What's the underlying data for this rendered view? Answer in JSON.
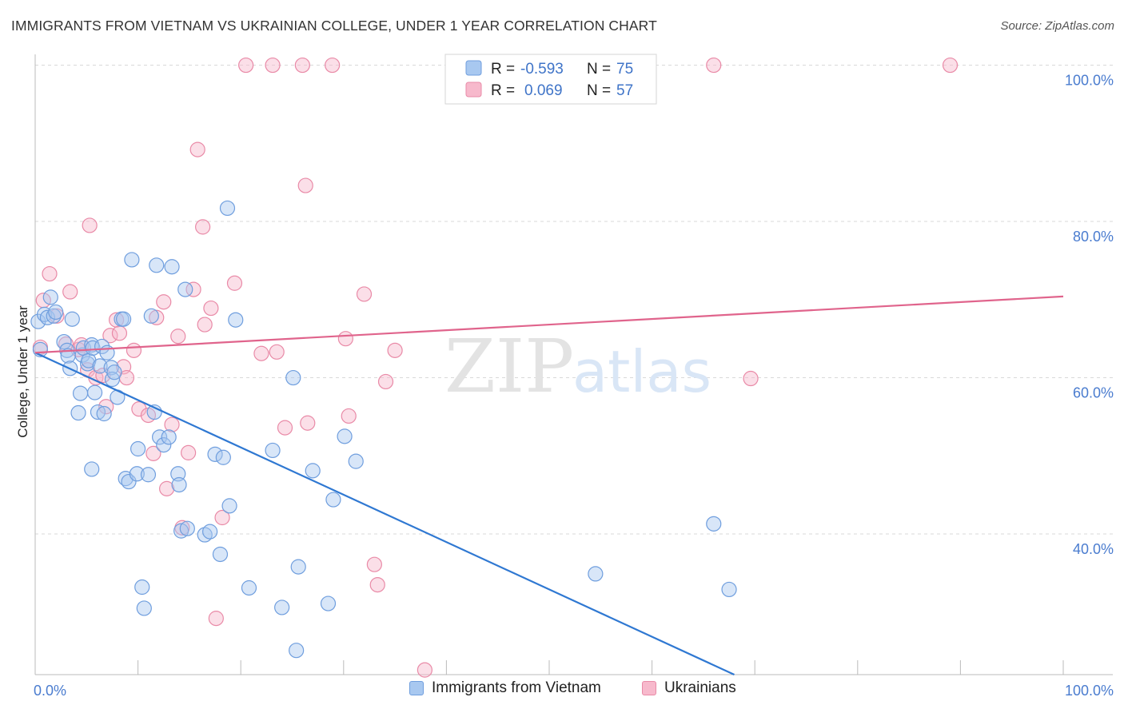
{
  "header": {
    "title": "IMMIGRANTS FROM VIETNAM VS UKRAINIAN COLLEGE, UNDER 1 YEAR CORRELATION CHART",
    "source": "Source: ZipAtlas.com"
  },
  "watermark": {
    "zip": "ZIP",
    "atlas": "atlas"
  },
  "colors": {
    "blue_fill": "#a8c8f0",
    "blue_stroke": "#6f9ede",
    "blue_line": "#2f78d2",
    "pink_fill": "#f7b9cc",
    "pink_stroke": "#e98aa7",
    "pink_line": "#e0648c",
    "value_text": "#3f74c8",
    "grid": "#d9d9d9"
  },
  "legend_top": {
    "rows": [
      {
        "r_label": "R =",
        "r_value": "-0.593",
        "n_label": "N =",
        "n_value": "75"
      },
      {
        "r_label": "R =",
        "r_value": "0.069",
        "n_label": "N =",
        "n_value": "57"
      }
    ]
  },
  "chart_data": {
    "type": "scatter",
    "title": "IMMIGRANTS FROM VIETNAM VS UKRAINIAN COLLEGE, UNDER 1 YEAR CORRELATION CHART",
    "xlabel": "",
    "ylabel": "College, Under 1 year",
    "xlim": [
      0,
      100
    ],
    "ylim": [
      22,
      102
    ],
    "x_tick_labels": [
      "0.0%",
      "100.0%"
    ],
    "y_ticks": [
      40,
      60,
      80,
      100
    ],
    "y_tick_labels": [
      "40.0%",
      "60.0%",
      "80.0%",
      "100.0%"
    ],
    "grid": true,
    "legend": "bottom-center",
    "series": [
      {
        "name": "Immigrants from Vietnam",
        "color": "#a8c8f0",
        "trend": {
          "x": [
            0,
            68
          ],
          "y": [
            63.2,
            22
          ]
        },
        "points": [
          [
            0.3,
            67.2
          ],
          [
            0.5,
            63.6
          ],
          [
            0.9,
            68.1
          ],
          [
            1.2,
            67.7
          ],
          [
            1.5,
            70.3
          ],
          [
            1.8,
            67.9
          ],
          [
            2.0,
            68.4
          ],
          [
            2.8,
            64.6
          ],
          [
            3.1,
            63.5
          ],
          [
            3.2,
            62.8
          ],
          [
            3.4,
            61.2
          ],
          [
            3.6,
            67.5
          ],
          [
            4.2,
            55.5
          ],
          [
            4.4,
            58.0
          ],
          [
            4.6,
            62.9
          ],
          [
            4.7,
            63.8
          ],
          [
            5.1,
            61.8
          ],
          [
            5.2,
            62.2
          ],
          [
            5.5,
            64.2
          ],
          [
            5.6,
            63.8
          ],
          [
            5.5,
            48.3
          ],
          [
            5.8,
            58.1
          ],
          [
            6.1,
            55.6
          ],
          [
            6.3,
            61.5
          ],
          [
            6.5,
            64.0
          ],
          [
            6.7,
            55.4
          ],
          [
            7.0,
            63.2
          ],
          [
            7.4,
            61.3
          ],
          [
            7.5,
            59.8
          ],
          [
            7.7,
            60.7
          ],
          [
            8.0,
            57.5
          ],
          [
            8.4,
            67.5
          ],
          [
            8.6,
            67.5
          ],
          [
            8.8,
            47.1
          ],
          [
            9.1,
            46.7
          ],
          [
            9.4,
            75.1
          ],
          [
            9.9,
            47.7
          ],
          [
            10.0,
            50.9
          ],
          [
            10.4,
            33.2
          ],
          [
            10.6,
            30.5
          ],
          [
            11.0,
            47.6
          ],
          [
            11.3,
            67.9
          ],
          [
            11.6,
            55.6
          ],
          [
            11.8,
            74.4
          ],
          [
            12.1,
            52.4
          ],
          [
            12.5,
            51.4
          ],
          [
            13.0,
            52.4
          ],
          [
            13.3,
            74.2
          ],
          [
            13.9,
            47.7
          ],
          [
            14.0,
            46.3
          ],
          [
            14.2,
            40.4
          ],
          [
            14.6,
            71.3
          ],
          [
            14.8,
            40.7
          ],
          [
            16.5,
            39.9
          ],
          [
            17.0,
            40.3
          ],
          [
            17.5,
            50.2
          ],
          [
            18.0,
            37.4
          ],
          [
            18.3,
            49.8
          ],
          [
            18.7,
            81.7
          ],
          [
            18.9,
            43.6
          ],
          [
            19.5,
            67.4
          ],
          [
            20.8,
            33.1
          ],
          [
            23.1,
            50.7
          ],
          [
            24.0,
            30.6
          ],
          [
            25.1,
            60.0
          ],
          [
            25.4,
            25.1
          ],
          [
            25.6,
            35.8
          ],
          [
            27.0,
            48.1
          ],
          [
            28.5,
            31.1
          ],
          [
            29.0,
            44.4
          ],
          [
            30.1,
            52.5
          ],
          [
            31.2,
            49.3
          ],
          [
            54.5,
            34.9
          ],
          [
            66.0,
            41.3
          ],
          [
            67.5,
            32.9
          ]
        ]
      },
      {
        "name": "Ukrainians",
        "color": "#f7b9cc",
        "trend": {
          "x": [
            0,
            100
          ],
          "y": [
            63.2,
            70.4
          ]
        },
        "points": [
          [
            0.5,
            63.9
          ],
          [
            0.8,
            69.9
          ],
          [
            1.4,
            73.3
          ],
          [
            2.1,
            67.9
          ],
          [
            3.0,
            64.3
          ],
          [
            3.4,
            71.0
          ],
          [
            4.2,
            63.6
          ],
          [
            4.5,
            64.2
          ],
          [
            5.1,
            61.0
          ],
          [
            5.3,
            79.5
          ],
          [
            5.9,
            60.0
          ],
          [
            6.6,
            60.3
          ],
          [
            6.9,
            56.3
          ],
          [
            7.3,
            65.4
          ],
          [
            7.9,
            67.4
          ],
          [
            8.2,
            65.7
          ],
          [
            8.6,
            61.4
          ],
          [
            8.9,
            60.0
          ],
          [
            9.6,
            63.5
          ],
          [
            10.1,
            56.0
          ],
          [
            11.0,
            55.2
          ],
          [
            11.5,
            50.3
          ],
          [
            11.8,
            67.7
          ],
          [
            12.5,
            69.7
          ],
          [
            12.8,
            45.8
          ],
          [
            13.3,
            54.0
          ],
          [
            13.9,
            65.3
          ],
          [
            14.3,
            40.8
          ],
          [
            14.9,
            50.4
          ],
          [
            15.4,
            71.3
          ],
          [
            15.8,
            89.2
          ],
          [
            16.3,
            79.3
          ],
          [
            16.5,
            66.8
          ],
          [
            17.1,
            68.9
          ],
          [
            17.6,
            29.2
          ],
          [
            18.2,
            42.1
          ],
          [
            19.4,
            72.1
          ],
          [
            20.5,
            100
          ],
          [
            22.0,
            63.1
          ],
          [
            23.1,
            100
          ],
          [
            23.5,
            63.3
          ],
          [
            24.3,
            53.6
          ],
          [
            26.0,
            100
          ],
          [
            26.3,
            84.6
          ],
          [
            26.5,
            54.2
          ],
          [
            28.9,
            100
          ],
          [
            30.2,
            65.0
          ],
          [
            30.5,
            55.1
          ],
          [
            32.0,
            70.7
          ],
          [
            33.0,
            36.1
          ],
          [
            33.3,
            33.5
          ],
          [
            34.1,
            59.5
          ],
          [
            35.0,
            63.5
          ],
          [
            37.9,
            22.6
          ],
          [
            66.0,
            100
          ],
          [
            69.6,
            59.9
          ],
          [
            89.0,
            100
          ]
        ]
      }
    ]
  }
}
